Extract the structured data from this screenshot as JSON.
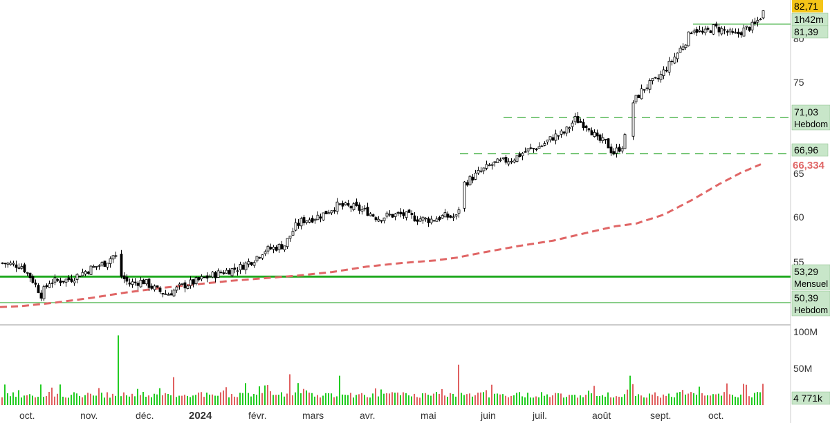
{
  "chart_data": {
    "type": "candlestick",
    "price_axis": {
      "ticks": [
        {
          "value": 55,
          "label": "55"
        },
        {
          "value": 60,
          "label": "60"
        },
        {
          "value": 65,
          "label": "65"
        },
        {
          "value": 75,
          "label": "75"
        },
        {
          "value": 80,
          "label": "80"
        }
      ],
      "range": [
        48,
        84
      ]
    },
    "volume_axis": {
      "ticks": [
        {
          "value": 100,
          "label": "100M"
        },
        {
          "value": 50,
          "label": "50M"
        }
      ],
      "range": [
        0,
        120
      ]
    },
    "x_axis_labels": [
      "oct.",
      "nov.",
      "déc.",
      "2024",
      "févr.",
      "mars",
      "avr.",
      "mai",
      "juin",
      "juil.",
      "août",
      "sept.",
      "oct."
    ],
    "level_labels": {
      "last_price": "82,71",
      "countdown": "1h42m",
      "level_81": "81,39",
      "level_71": "71,03",
      "level_71_tf": "Hebdom",
      "level_67": "66,96",
      "moving_average": "66,334",
      "level_53": "53,29",
      "level_53_tf": "Mensuel",
      "level_50": "50,39",
      "level_50_tf": "Hebdom",
      "volume_last": "4 771k"
    },
    "levels": {
      "level_81": 81.39,
      "level_71": 71.03,
      "level_67": 66.96,
      "level_53": 53.29,
      "level_50": 50.39
    },
    "moving_average_points": [
      [
        0,
        49.9
      ],
      [
        30,
        50.0
      ],
      [
        80,
        50.4
      ],
      [
        130,
        50.9
      ],
      [
        180,
        51.5
      ],
      [
        230,
        52.0
      ],
      [
        280,
        52.4
      ],
      [
        330,
        52.8
      ],
      [
        380,
        53.1
      ],
      [
        430,
        53.4
      ],
      [
        480,
        53.8
      ],
      [
        530,
        54.4
      ],
      [
        580,
        54.8
      ],
      [
        630,
        55.1
      ],
      [
        660,
        55.4
      ],
      [
        700,
        56.0
      ],
      [
        750,
        56.7
      ],
      [
        800,
        57.3
      ],
      [
        850,
        58.2
      ],
      [
        890,
        58.9
      ],
      [
        920,
        59.2
      ],
      [
        960,
        60.2
      ],
      [
        1000,
        61.8
      ],
      [
        1040,
        63.6
      ],
      [
        1070,
        64.8
      ],
      [
        1100,
        65.8
      ]
    ],
    "price_path": [
      [
        2,
        54.8
      ],
      [
        30,
        54.5
      ],
      [
        45,
        53.0
      ],
      [
        58,
        51.3
      ],
      [
        70,
        52.7
      ],
      [
        100,
        53.0
      ],
      [
        130,
        54.2
      ],
      [
        150,
        54.8
      ],
      [
        165,
        55.8
      ],
      [
        172,
        53.5
      ],
      [
        185,
        52.5
      ],
      [
        205,
        52.8
      ],
      [
        225,
        51.8
      ],
      [
        240,
        51.3
      ],
      [
        260,
        52.2
      ],
      [
        280,
        52.7
      ],
      [
        300,
        53.3
      ],
      [
        320,
        53.8
      ],
      [
        345,
        54.3
      ],
      [
        365,
        55.2
      ],
      [
        380,
        56.2
      ],
      [
        410,
        56.8
      ],
      [
        425,
        58.8
      ],
      [
        435,
        59.5
      ],
      [
        450,
        59.8
      ],
      [
        465,
        60.2
      ],
      [
        485,
        61.2
      ],
      [
        510,
        61.0
      ],
      [
        530,
        60.5
      ],
      [
        545,
        59.8
      ],
      [
        560,
        60.1
      ],
      [
        580,
        60.2
      ],
      [
        600,
        59.8
      ],
      [
        620,
        59.6
      ],
      [
        640,
        60.0
      ],
      [
        660,
        59.9
      ],
      [
        667,
        63.5
      ],
      [
        690,
        64.8
      ],
      [
        710,
        65.8
      ],
      [
        740,
        66.4
      ],
      [
        760,
        67.3
      ],
      [
        780,
        67.8
      ],
      [
        800,
        68.9
      ],
      [
        815,
        69.3
      ],
      [
        830,
        70.8
      ],
      [
        850,
        70.0
      ],
      [
        862,
        68.5
      ],
      [
        875,
        68.2
      ],
      [
        885,
        67.0
      ],
      [
        900,
        68.0
      ],
      [
        912,
        72.5
      ],
      [
        930,
        74.3
      ],
      [
        950,
        75.3
      ],
      [
        970,
        77.3
      ],
      [
        990,
        79.5
      ],
      [
        1000,
        81.0
      ],
      [
        1015,
        80.3
      ],
      [
        1030,
        81.0
      ],
      [
        1045,
        80.7
      ],
      [
        1060,
        80.1
      ],
      [
        1075,
        80.8
      ],
      [
        1090,
        81.3
      ],
      [
        1102,
        82.7
      ]
    ],
    "volume_path": [
      [
        2,
        12
      ],
      [
        30,
        14
      ],
      [
        58,
        28
      ],
      [
        80,
        13
      ],
      [
        120,
        14
      ],
      [
        150,
        13
      ],
      [
        165,
        20
      ],
      [
        172,
        95
      ],
      [
        200,
        22
      ],
      [
        230,
        23
      ],
      [
        250,
        38
      ],
      [
        280,
        14
      ],
      [
        320,
        15
      ],
      [
        360,
        13
      ],
      [
        400,
        14
      ],
      [
        420,
        42
      ],
      [
        430,
        30
      ],
      [
        440,
        22
      ],
      [
        470,
        13
      ],
      [
        493,
        40
      ],
      [
        520,
        13
      ],
      [
        560,
        13
      ],
      [
        600,
        12
      ],
      [
        640,
        15
      ],
      [
        665,
        55
      ],
      [
        680,
        15
      ],
      [
        720,
        12
      ],
      [
        760,
        18
      ],
      [
        800,
        12
      ],
      [
        830,
        13
      ],
      [
        860,
        14
      ],
      [
        890,
        13
      ],
      [
        910,
        40
      ],
      [
        930,
        14
      ],
      [
        970,
        13
      ],
      [
        1010,
        25
      ],
      [
        1040,
        12
      ],
      [
        1070,
        13
      ],
      [
        1102,
        4
      ]
    ]
  }
}
